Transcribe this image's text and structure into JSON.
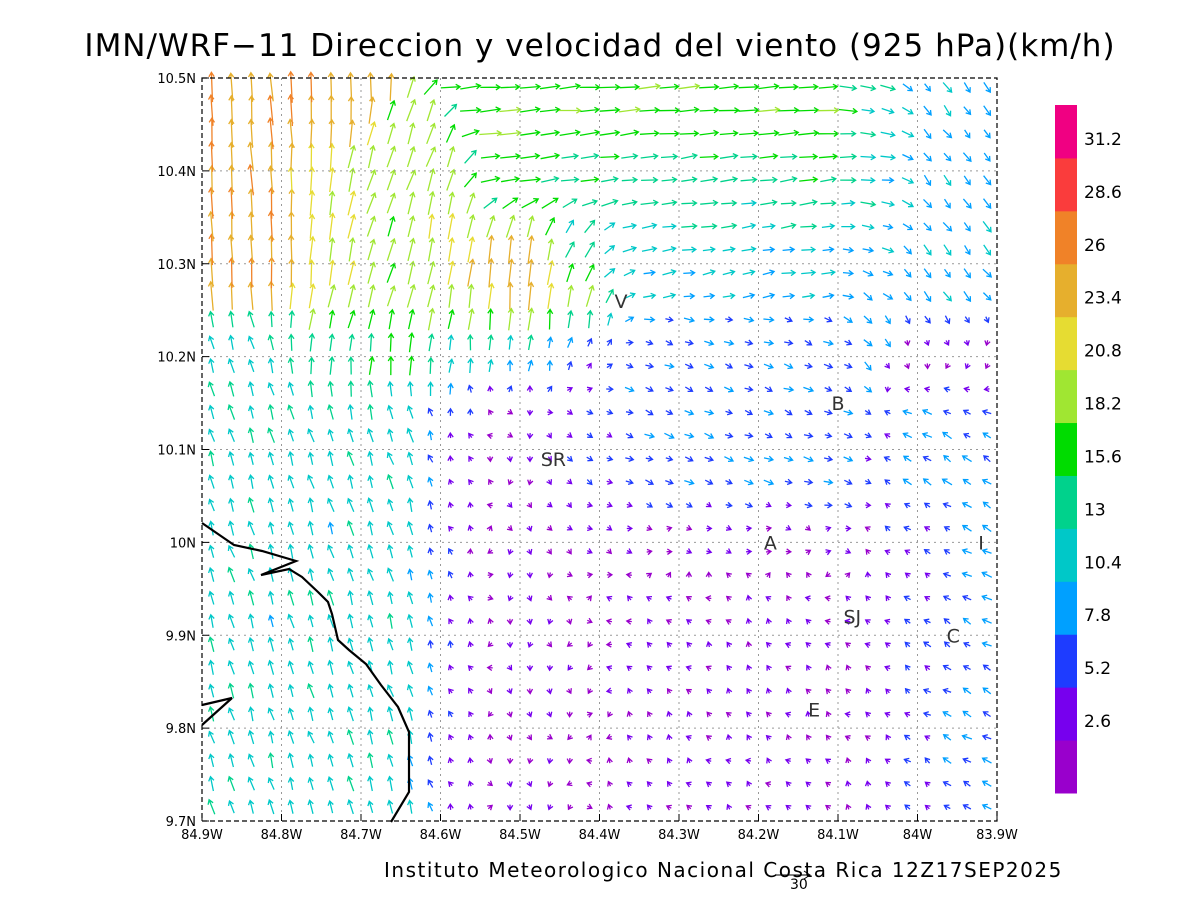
{
  "title": "IMN/WRF−11 Direccion y velocidad del viento (925 hPa)(km/h)",
  "credit": "Instituto Meteorologico Nacional Costa Rica 12Z17SEP2025",
  "scale_vector": {
    "label": "30",
    "value": 30
  },
  "map_extent": {
    "lon_min": -84.9,
    "lon_max": -83.9,
    "lat_min": 9.7,
    "lat_max": 10.5
  },
  "lon_ticks": [
    {
      "value": -84.9,
      "label": "84.9W"
    },
    {
      "value": -84.8,
      "label": "84.8W"
    },
    {
      "value": -84.7,
      "label": "84.7W"
    },
    {
      "value": -84.6,
      "label": "84.6W"
    },
    {
      "value": -84.5,
      "label": "84.5W"
    },
    {
      "value": -84.4,
      "label": "84.4W"
    },
    {
      "value": -84.3,
      "label": "84.3W"
    },
    {
      "value": -84.2,
      "label": "84.2W"
    },
    {
      "value": -84.1,
      "label": "84.1W"
    },
    {
      "value": -84.0,
      "label": "84W"
    },
    {
      "value": -83.9,
      "label": "83.9W"
    }
  ],
  "lat_ticks": [
    {
      "value": 10.5,
      "label": "10.5N"
    },
    {
      "value": 10.4,
      "label": "10.4N"
    },
    {
      "value": 10.3,
      "label": "10.3N"
    },
    {
      "value": 10.2,
      "label": "10.2N"
    },
    {
      "value": 10.1,
      "label": "10.1N"
    },
    {
      "value": 10.0,
      "label": "10N"
    },
    {
      "value": 9.9,
      "label": "9.9N"
    },
    {
      "value": 9.8,
      "label": "9.8N"
    },
    {
      "value": 9.7,
      "label": "9.7N"
    }
  ],
  "cities": [
    {
      "label": "V",
      "lon": -84.373,
      "lat": 10.26
    },
    {
      "label": "B",
      "lon": -84.1,
      "lat": 10.15
    },
    {
      "label": "SR",
      "lon": -84.458,
      "lat": 10.09
    },
    {
      "label": "A",
      "lon": -84.185,
      "lat": 10.0
    },
    {
      "label": "I",
      "lon": -83.92,
      "lat": 10.0
    },
    {
      "label": "SJ",
      "lon": -84.082,
      "lat": 9.92
    },
    {
      "label": "C",
      "lon": -83.955,
      "lat": 9.9
    },
    {
      "label": "E",
      "lon": -84.13,
      "lat": 9.82
    }
  ],
  "colorbar": {
    "colors": [
      "#9900cc",
      "#7700ee",
      "#1e3cff",
      "#00a0ff",
      "#00c8c8",
      "#00d28c",
      "#00dc00",
      "#a0e632",
      "#e6dc32",
      "#e6af2d",
      "#f08228",
      "#fa3c3c",
      "#f00082"
    ],
    "labels": [
      "2.6",
      "5.2",
      "7.8",
      "10.4",
      "13",
      "15.6",
      "18.2",
      "20.8",
      "23.4",
      "26",
      "28.6",
      "31.2"
    ]
  },
  "chart_data": {
    "type": "vector_field",
    "variable": "wind direction and speed at 925 hPa",
    "units": "km/h",
    "grid_spacing_deg": 0.025,
    "regions": [
      {
        "lon": [
          -84.9,
          -84.58
        ],
        "lat": [
          9.7,
          10.2
        ],
        "u": -3.5,
        "v": 11.5
      },
      {
        "lon": [
          -84.9,
          -84.75
        ],
        "lat": [
          10.3,
          10.5
        ],
        "u": -1.5,
        "v": 26
      },
      {
        "lon": [
          -84.75,
          -84.6
        ],
        "lat": [
          10.2,
          10.4
        ],
        "u": 6,
        "v": 18
      },
      {
        "lon": [
          -84.6,
          -84.42
        ],
        "lat": [
          10.2,
          10.33
        ],
        "u": 2,
        "v": 24
      },
      {
        "lon": [
          -84.52,
          -84.05
        ],
        "lat": [
          10.38,
          10.5
        ],
        "u": 18,
        "v": 1.5
      },
      {
        "lon": [
          -84.42,
          -84.05
        ],
        "lat": [
          10.3,
          10.4
        ],
        "u": 11,
        "v": 2
      },
      {
        "lon": [
          -84.05,
          -83.9
        ],
        "lat": [
          10.2,
          10.5
        ],
        "u": 6,
        "v": -8
      },
      {
        "lon": [
          -84.58,
          -84.42
        ],
        "lat": [
          9.7,
          10.2
        ],
        "u": 0.5,
        "v": -3
      },
      {
        "lon": [
          -84.42,
          -84.1
        ],
        "lat": [
          10.0,
          10.2
        ],
        "u": 7,
        "v": -2.5
      },
      {
        "lon": [
          -84.42,
          -84.0
        ],
        "lat": [
          9.7,
          10.0
        ],
        "u": -2,
        "v": 2
      },
      {
        "lon": [
          -84.0,
          -83.9
        ],
        "lat": [
          9.7,
          10.2
        ],
        "u": -7,
        "v": 4
      }
    ]
  }
}
